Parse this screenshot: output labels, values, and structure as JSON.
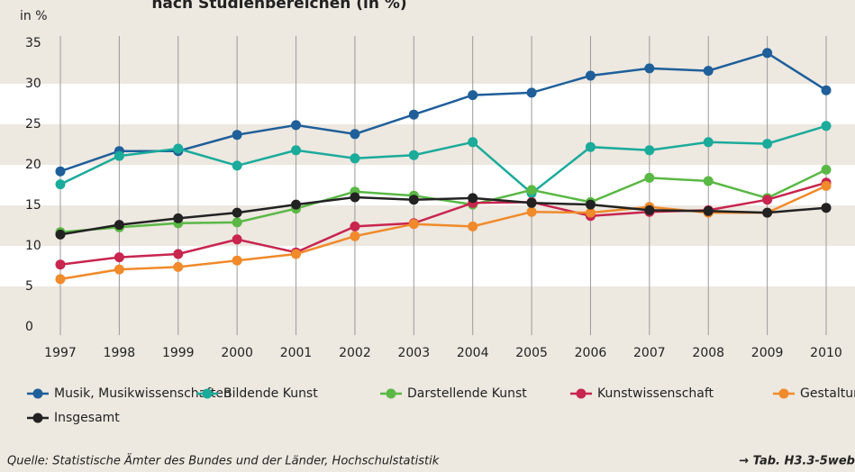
{
  "chart_data": {
    "type": "line",
    "title": "nach Studienbereichen (in %)",
    "ylabel": "in %",
    "x": [
      1997,
      1998,
      1999,
      2000,
      2001,
      2002,
      2003,
      2004,
      2005,
      2006,
      2007,
      2008,
      2009,
      2010
    ],
    "xlim": [
      1997,
      2010
    ],
    "xticks": [
      1997,
      1998,
      1999,
      2000,
      2001,
      2002,
      2003,
      2004,
      2005,
      2006,
      2007,
      2008,
      2009,
      2010
    ],
    "ylim": [
      0,
      35
    ],
    "yticks": [
      0,
      5,
      10,
      15,
      20,
      25,
      30,
      35
    ],
    "grid": true,
    "series": [
      {
        "name": "Musik, Musikwissenschaften",
        "color": "#1f5f9a",
        "values": [
          19.2,
          21.7,
          21.7,
          23.7,
          24.9,
          23.8,
          26.2,
          28.6,
          28.9,
          31.0,
          31.9,
          31.6,
          33.8,
          29.2
        ]
      },
      {
        "name": "Bildende Kunst",
        "color": "#1aab9b",
        "values": [
          17.6,
          21.1,
          22.0,
          19.9,
          21.8,
          20.8,
          21.2,
          22.8,
          16.5,
          22.2,
          21.8,
          22.8,
          22.6,
          24.8
        ]
      },
      {
        "name": "Darstellende Kunst",
        "color": "#5ab845",
        "values": [
          11.7,
          12.3,
          12.8,
          12.9,
          14.6,
          16.7,
          16.2,
          15.1,
          16.9,
          15.4,
          18.4,
          18.0,
          15.9,
          19.4
        ]
      },
      {
        "name": "Kunstwissenschaft",
        "color": "#c8254f",
        "values": [
          7.7,
          8.6,
          9.0,
          10.8,
          9.2,
          12.4,
          12.8,
          15.3,
          15.4,
          13.7,
          14.2,
          14.4,
          15.7,
          17.8
        ]
      },
      {
        "name": "Gestaltung",
        "color": "#f08a2a",
        "values": [
          5.9,
          7.1,
          7.4,
          8.2,
          9.0,
          11.2,
          12.7,
          12.4,
          14.2,
          14.1,
          14.8,
          14.1,
          14.1,
          17.4
        ]
      },
      {
        "name": "Insgesamt",
        "color": "#222222",
        "values": [
          11.4,
          12.6,
          13.4,
          14.1,
          15.1,
          16.0,
          15.7,
          15.9,
          15.3,
          15.1,
          14.4,
          14.3,
          14.1,
          14.7
        ]
      }
    ],
    "source": "Quelle: Statistische Ämter des Bundes und der Länder, Hochschulstatistik",
    "source_ref": "→ Tab. H3.3-5web"
  }
}
